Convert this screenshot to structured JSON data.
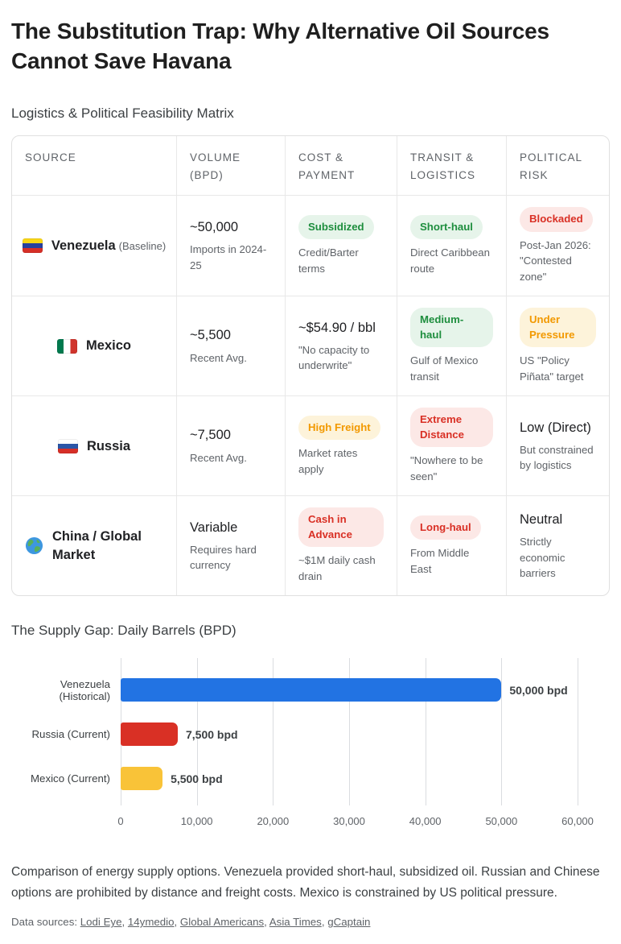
{
  "page": {
    "title": "The Substitution Trap: Why Alternative Oil Sources Cannot Save Havana",
    "matrix_section_title": "Logistics & Political Feasibility Matrix",
    "chart_section_title": "The Supply Gap: Daily Barrels (BPD)",
    "footer_text": "Comparison of energy supply options. Venezuela provided short-haul, subsidized oil. Russian and Chinese options are prohibited by distance and freight costs. Mexico is constrained by US political pressure.",
    "sources_label": "Data sources:",
    "sources": [
      "Lodi Eye",
      "14ymedio",
      "Global Americans",
      "Asia Times",
      "gCaptain"
    ]
  },
  "colors": {
    "badge_green_bg": "#e6f4ea",
    "badge_green_text": "#1e8e3e",
    "badge_red_bg": "#fce8e6",
    "badge_red_text": "#d93025",
    "badge_orange_bg": "#fdf3da",
    "badge_orange_text": "#f29900"
  },
  "table": {
    "columns": [
      "SOURCE",
      "VOLUME (BPD)",
      "COST & PAYMENT",
      "TRANSIT & LOGISTICS",
      "POLITICAL RISK"
    ],
    "rows": [
      {
        "source": {
          "name": "Venezuela",
          "note": "(Baseline)",
          "icon": "venezuela-flag-icon"
        },
        "volume": {
          "text": "~50,000",
          "note": "Imports in 2024-25"
        },
        "cost": {
          "badge": "Subsidized",
          "badge_type": "green",
          "note": "Credit/Barter terms"
        },
        "transit": {
          "badge": "Short-haul",
          "badge_type": "green",
          "note": "Direct Caribbean route"
        },
        "risk": {
          "badge": "Blockaded",
          "badge_type": "red",
          "note": "Post-Jan 2026: \"Contested zone\""
        }
      },
      {
        "source": {
          "name": "Mexico",
          "note": "",
          "icon": "mexico-flag-icon"
        },
        "volume": {
          "text": "~5,500",
          "note": "Recent Avg."
        },
        "cost": {
          "text": "~$54.90 / bbl",
          "note": "\"No capacity to underwrite\""
        },
        "transit": {
          "badge": "Medium-haul",
          "badge_type": "green",
          "note": "Gulf of Mexico transit"
        },
        "risk": {
          "badge": "Under Pressure",
          "badge_type": "orange",
          "note": "US \"Policy Piñata\" target"
        }
      },
      {
        "source": {
          "name": "Russia",
          "note": "",
          "icon": "russia-flag-icon"
        },
        "volume": {
          "text": "~7,500",
          "note": "Recent Avg."
        },
        "cost": {
          "badge": "High Freight",
          "badge_type": "orange",
          "note": "Market rates apply"
        },
        "transit": {
          "badge": "Extreme Distance",
          "badge_type": "red",
          "note": "\"Nowhere to be seen\""
        },
        "risk": {
          "text": "Low (Direct)",
          "note": "But constrained by logistics"
        }
      },
      {
        "source": {
          "name": "China / Global Market",
          "note": "",
          "icon": "globe-icon"
        },
        "volume": {
          "text": "Variable",
          "note": "Requires hard currency"
        },
        "cost": {
          "badge": "Cash in Advance",
          "badge_type": "red",
          "note": "~$1M daily cash drain"
        },
        "transit": {
          "badge": "Long-haul",
          "badge_type": "red",
          "note": "From Middle East"
        },
        "risk": {
          "text": "Neutral",
          "note": "Strictly economic barriers"
        }
      }
    ]
  },
  "chart_data": {
    "type": "bar",
    "orientation": "horizontal",
    "title": "The Supply Gap: Daily Barrels (BPD)",
    "categories": [
      "Venezuela (Historical)",
      "Russia (Current)",
      "Mexico (Current)"
    ],
    "values": [
      50000,
      7500,
      5500
    ],
    "value_labels": [
      "50,000 bpd",
      "7,500 bpd",
      "5,500 bpd"
    ],
    "bar_colors": [
      "#2273e3",
      "#d93025",
      "#f9c338"
    ],
    "xlim": [
      0,
      60000
    ],
    "x_ticks": [
      0,
      10000,
      20000,
      30000,
      40000,
      50000,
      60000
    ],
    "x_tick_labels": [
      "0",
      "10,000",
      "20,000",
      "30,000",
      "40,000",
      "50,000",
      "60,000"
    ],
    "grid": "vertical",
    "legend": "none"
  }
}
